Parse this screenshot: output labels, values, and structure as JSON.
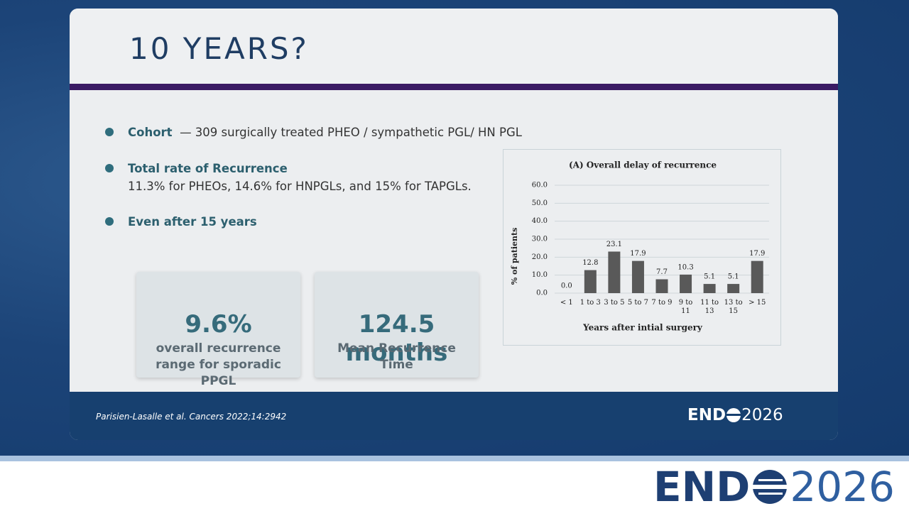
{
  "slide": {
    "title": "10 YEARS?",
    "bullets": [
      {
        "label": "Cohort",
        "text": "— 309 surgically treated PHEO /  sympathetic PGL/ HN PGL"
      },
      {
        "label": "Total rate of Recurrence",
        "text": "11.3% for PHEOs, 14.6% for HNPGLs, and 15% for TAPGLs."
      },
      {
        "label": "Even after 15 years"
      }
    ],
    "stats": [
      {
        "value": "9.6%",
        "label": "overall recurrence range for sporadic PPGL"
      },
      {
        "value": "124.5 months",
        "label": "Mean Recurrence Time"
      }
    ],
    "citation": "Parisien-Lasalle et al. Cancers 2022;14:2942",
    "logo": {
      "left": "END",
      "right": "2026"
    }
  },
  "chart_data": {
    "type": "bar",
    "title": "(A) Overall delay of recurrence",
    "x_label": "Years  after intial   surgery",
    "y_label": "% of patients",
    "categories": [
      "< 1",
      "1 to 3",
      "3 to 5",
      "5 to 7",
      "7 to 9",
      "9 to 11",
      "11 to 13",
      "13 to 15",
      "> 15"
    ],
    "values": [
      0,
      12.8,
      23.1,
      17.9,
      7.7,
      10.3,
      5.1,
      5.1,
      17.9
    ],
    "value_labels": [
      "0.0",
      "12.8",
      "23.1",
      "17.9",
      "7.7",
      "10.3",
      "5.1",
      "5.1",
      "17.9"
    ],
    "color": "#595959",
    "ylim": [
      0,
      60
    ],
    "yticks": [
      {
        "value": 0,
        "label": "0.0"
      },
      {
        "value": 10,
        "label": "10.0"
      },
      {
        "value": 20,
        "label": "20.0"
      },
      {
        "value": 30,
        "label": "30.0"
      },
      {
        "value": 40,
        "label": "40.0"
      },
      {
        "value": 50,
        "label": "50.0"
      },
      {
        "value": 60,
        "label": "60.0"
      }
    ],
    "grid": true
  }
}
